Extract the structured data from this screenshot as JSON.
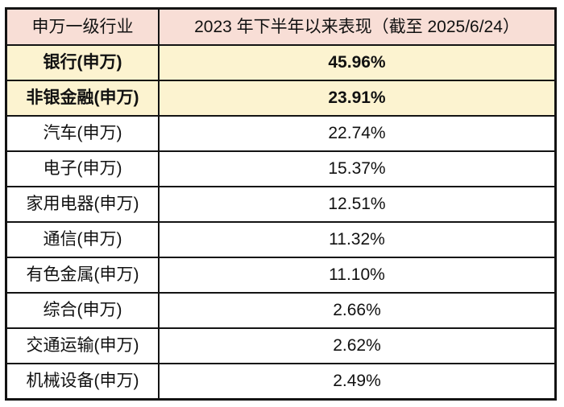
{
  "chart_data": {
    "type": "table",
    "columns": [
      "申万一级行业",
      "2023 年下半年以来表现（截至 2025/6/24）"
    ],
    "rows": [
      {
        "industry": "银行(申万)",
        "performance": "45.96%",
        "highlight": true
      },
      {
        "industry": "非银金融(申万)",
        "performance": "23.91%",
        "highlight": true
      },
      {
        "industry": "汽车(申万)",
        "performance": "22.74%",
        "highlight": false
      },
      {
        "industry": "电子(申万)",
        "performance": "15.37%",
        "highlight": false
      },
      {
        "industry": "家用电器(申万)",
        "performance": "12.51%",
        "highlight": false
      },
      {
        "industry": "通信(申万)",
        "performance": "11.32%",
        "highlight": false
      },
      {
        "industry": "有色金属(申万)",
        "performance": "11.10%",
        "highlight": false
      },
      {
        "industry": "综合(申万)",
        "performance": "2.66%",
        "highlight": false
      },
      {
        "industry": "交通运输(申万)",
        "performance": "2.62%",
        "highlight": false
      },
      {
        "industry": "机械设备(申万)",
        "performance": "2.49%",
        "highlight": false
      }
    ],
    "values_numeric": [
      45.96,
      23.91,
      22.74,
      15.37,
      12.51,
      11.32,
      11.1,
      2.66,
      2.62,
      2.49
    ]
  },
  "colors": {
    "header_bg": "#f8ded6",
    "highlight_bg": "#fcf3d0",
    "row_bg": "#ffffff",
    "border": "#131313",
    "text": "#111111"
  }
}
